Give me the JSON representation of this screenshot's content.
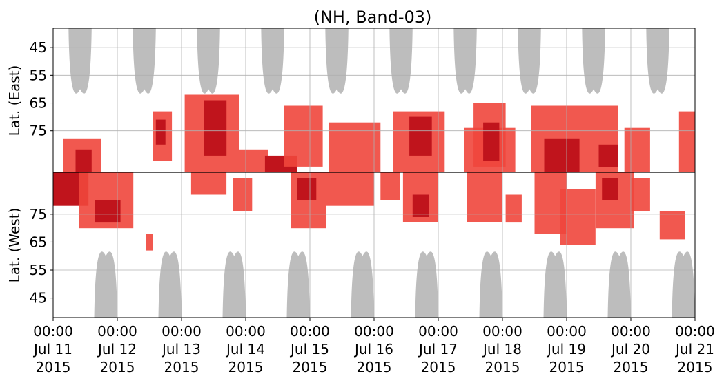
{
  "chart_data": {
    "type": "heatmap",
    "title": "(NH, Band-03)",
    "ylabel_top": "Lat. (East)",
    "ylabel_bottom": "Lat. (West)",
    "x_ticks": [
      {
        "time": "00:00",
        "date": "Jul 11",
        "year": "2015"
      },
      {
        "time": "00:00",
        "date": "Jul 12",
        "year": "2015"
      },
      {
        "time": "00:00",
        "date": "Jul 13",
        "year": "2015"
      },
      {
        "time": "00:00",
        "date": "Jul 14",
        "year": "2015"
      },
      {
        "time": "00:00",
        "date": "Jul 15",
        "year": "2015"
      },
      {
        "time": "00:00",
        "date": "Jul 16",
        "year": "2015"
      },
      {
        "time": "00:00",
        "date": "Jul 17",
        "year": "2015"
      },
      {
        "time": "00:00",
        "date": "Jul 18",
        "year": "2015"
      },
      {
        "time": "00:00",
        "date": "Jul 19",
        "year": "2015"
      },
      {
        "time": "00:00",
        "date": "Jul 20",
        "year": "2015"
      },
      {
        "time": "00:00",
        "date": "Jul 21",
        "year": "2015"
      }
    ],
    "xlim": [
      "2015-07-11T00:00",
      "2015-07-21T00:00"
    ],
    "y_ticks_east": [
      "45",
      "55",
      "65",
      "75"
    ],
    "y_ticks_west": [
      "75",
      "65",
      "55",
      "45"
    ],
    "ylim_east": [
      38,
      90
    ],
    "ylim_west": [
      90,
      38
    ],
    "grid": true,
    "colors": {
      "darkred": "#c0141c",
      "red": "#f0463c",
      "gray": "#bdbdbd"
    },
    "gray_lobes": [
      {
        "panel": "east",
        "day": 0.42,
        "half_width_days": 0.18,
        "lat_edge": 60
      },
      {
        "panel": "east",
        "day": 1.42,
        "half_width_days": 0.18,
        "lat_edge": 60
      },
      {
        "panel": "east",
        "day": 2.42,
        "half_width_days": 0.18,
        "lat_edge": 60
      },
      {
        "panel": "east",
        "day": 3.42,
        "half_width_days": 0.18,
        "lat_edge": 60
      },
      {
        "panel": "east",
        "day": 4.42,
        "half_width_days": 0.18,
        "lat_edge": 60
      },
      {
        "panel": "east",
        "day": 5.42,
        "half_width_days": 0.18,
        "lat_edge": 60
      },
      {
        "panel": "east",
        "day": 6.42,
        "half_width_days": 0.18,
        "lat_edge": 60
      },
      {
        "panel": "east",
        "day": 7.42,
        "half_width_days": 0.18,
        "lat_edge": 60
      },
      {
        "panel": "east",
        "day": 8.42,
        "half_width_days": 0.18,
        "lat_edge": 60
      },
      {
        "panel": "east",
        "day": 9.42,
        "half_width_days": 0.18,
        "lat_edge": 60
      },
      {
        "panel": "west",
        "day": 0.82,
        "half_width_days": 0.18,
        "lat_edge": 60
      },
      {
        "panel": "west",
        "day": 1.82,
        "half_width_days": 0.18,
        "lat_edge": 60
      },
      {
        "panel": "west",
        "day": 2.82,
        "half_width_days": 0.18,
        "lat_edge": 60
      },
      {
        "panel": "west",
        "day": 3.82,
        "half_width_days": 0.18,
        "lat_edge": 60
      },
      {
        "panel": "west",
        "day": 4.82,
        "half_width_days": 0.18,
        "lat_edge": 60
      },
      {
        "panel": "west",
        "day": 5.82,
        "half_width_days": 0.18,
        "lat_edge": 60
      },
      {
        "panel": "west",
        "day": 6.82,
        "half_width_days": 0.18,
        "lat_edge": 60
      },
      {
        "panel": "west",
        "day": 7.82,
        "half_width_days": 0.18,
        "lat_edge": 60
      },
      {
        "panel": "west",
        "day": 8.82,
        "half_width_days": 0.18,
        "lat_edge": 60
      },
      {
        "panel": "west",
        "day": 9.82,
        "half_width_days": 0.18,
        "lat_edge": 60
      }
    ],
    "red_regions": [
      {
        "panel": "east",
        "day_start": 0.15,
        "day_end": 0.75,
        "lat_low": 78,
        "lat_high": 90,
        "level": "red"
      },
      {
        "panel": "east",
        "day_start": 0.35,
        "day_end": 0.6,
        "lat_low": 82,
        "lat_high": 90,
        "level": "darkred"
      },
      {
        "panel": "east",
        "day_start": 1.55,
        "day_end": 1.85,
        "lat_low": 68,
        "lat_high": 86,
        "level": "red"
      },
      {
        "panel": "east",
        "day_start": 1.6,
        "day_end": 1.75,
        "lat_low": 71,
        "lat_high": 80,
        "level": "darkred"
      },
      {
        "panel": "east",
        "day_start": 2.05,
        "day_end": 2.9,
        "lat_low": 62,
        "lat_high": 90,
        "level": "red"
      },
      {
        "panel": "east",
        "day_start": 2.35,
        "day_end": 2.7,
        "lat_low": 64,
        "lat_high": 84,
        "level": "darkred"
      },
      {
        "panel": "east",
        "day_start": 2.9,
        "day_end": 3.35,
        "lat_low": 82,
        "lat_high": 90,
        "level": "red"
      },
      {
        "panel": "east",
        "day_start": 3.3,
        "day_end": 3.8,
        "lat_low": 84,
        "lat_high": 90,
        "level": "darkred"
      },
      {
        "panel": "east",
        "day_start": 3.6,
        "day_end": 4.2,
        "lat_low": 66,
        "lat_high": 88,
        "level": "red"
      },
      {
        "panel": "east",
        "day_start": 4.3,
        "day_end": 5.1,
        "lat_low": 72,
        "lat_high": 90,
        "level": "red"
      },
      {
        "panel": "east",
        "day_start": 5.3,
        "day_end": 6.1,
        "lat_low": 68,
        "lat_high": 90,
        "level": "red"
      },
      {
        "panel": "east",
        "day_start": 5.55,
        "day_end": 5.9,
        "lat_low": 70,
        "lat_high": 84,
        "level": "darkred"
      },
      {
        "panel": "east",
        "day_start": 6.4,
        "day_end": 7.2,
        "lat_low": 74,
        "lat_high": 90,
        "level": "red"
      },
      {
        "panel": "east",
        "day_start": 6.55,
        "day_end": 7.05,
        "lat_low": 65,
        "lat_high": 88,
        "level": "red"
      },
      {
        "panel": "east",
        "day_start": 6.7,
        "day_end": 6.95,
        "lat_low": 72,
        "lat_high": 86,
        "level": "darkred"
      },
      {
        "panel": "east",
        "day_start": 7.45,
        "day_end": 8.8,
        "lat_low": 66,
        "lat_high": 90,
        "level": "red"
      },
      {
        "panel": "east",
        "day_start": 7.65,
        "day_end": 8.2,
        "lat_low": 78,
        "lat_high": 90,
        "level": "darkred"
      },
      {
        "panel": "east",
        "day_start": 8.5,
        "day_end": 8.8,
        "lat_low": 80,
        "lat_high": 88,
        "level": "darkred"
      },
      {
        "panel": "east",
        "day_start": 8.9,
        "day_end": 9.3,
        "lat_low": 74,
        "lat_high": 90,
        "level": "red"
      },
      {
        "panel": "east",
        "day_start": 9.75,
        "day_end": 10.0,
        "lat_low": 68,
        "lat_high": 90,
        "level": "red"
      },
      {
        "panel": "west",
        "day_start": 0.0,
        "day_end": 0.55,
        "lat_low": 78,
        "lat_high": 90,
        "level": "darkred"
      },
      {
        "panel": "west",
        "day_start": 0.4,
        "day_end": 1.25,
        "lat_low": 70,
        "lat_high": 90,
        "level": "red"
      },
      {
        "panel": "west",
        "day_start": 0.65,
        "day_end": 1.05,
        "lat_low": 72,
        "lat_high": 80,
        "level": "darkred"
      },
      {
        "panel": "west",
        "day_start": 1.45,
        "day_end": 1.55,
        "lat_low": 62,
        "lat_high": 68,
        "level": "red"
      },
      {
        "panel": "west",
        "day_start": 2.15,
        "day_end": 2.7,
        "lat_low": 82,
        "lat_high": 90,
        "level": "red"
      },
      {
        "panel": "west",
        "day_start": 2.8,
        "day_end": 3.1,
        "lat_low": 76,
        "lat_high": 88,
        "level": "red"
      },
      {
        "panel": "west",
        "day_start": 3.7,
        "day_end": 4.25,
        "lat_low": 70,
        "lat_high": 90,
        "level": "red"
      },
      {
        "panel": "west",
        "day_start": 3.8,
        "day_end": 4.1,
        "lat_low": 80,
        "lat_high": 88,
        "level": "darkred"
      },
      {
        "panel": "west",
        "day_start": 4.25,
        "day_end": 5.0,
        "lat_low": 78,
        "lat_high": 90,
        "level": "red"
      },
      {
        "panel": "west",
        "day_start": 5.1,
        "day_end": 5.4,
        "lat_low": 80,
        "lat_high": 90,
        "level": "red"
      },
      {
        "panel": "west",
        "day_start": 5.45,
        "day_end": 6.0,
        "lat_low": 72,
        "lat_high": 90,
        "level": "red"
      },
      {
        "panel": "west",
        "day_start": 5.6,
        "day_end": 5.85,
        "lat_low": 74,
        "lat_high": 82,
        "level": "darkred"
      },
      {
        "panel": "west",
        "day_start": 6.45,
        "day_end": 7.0,
        "lat_low": 72,
        "lat_high": 90,
        "level": "red"
      },
      {
        "panel": "west",
        "day_start": 7.05,
        "day_end": 7.3,
        "lat_low": 72,
        "lat_high": 82,
        "level": "red"
      },
      {
        "panel": "west",
        "day_start": 7.5,
        "day_end": 8.0,
        "lat_low": 68,
        "lat_high": 90,
        "level": "red"
      },
      {
        "panel": "west",
        "day_start": 7.9,
        "day_end": 8.45,
        "lat_low": 64,
        "lat_high": 84,
        "level": "red"
      },
      {
        "panel": "west",
        "day_start": 8.45,
        "day_end": 9.05,
        "lat_low": 70,
        "lat_high": 90,
        "level": "red"
      },
      {
        "panel": "west",
        "day_start": 8.55,
        "day_end": 8.8,
        "lat_low": 80,
        "lat_high": 88,
        "level": "darkred"
      },
      {
        "panel": "west",
        "day_start": 9.0,
        "day_end": 9.3,
        "lat_low": 76,
        "lat_high": 88,
        "level": "red"
      },
      {
        "panel": "west",
        "day_start": 9.45,
        "day_end": 9.85,
        "lat_low": 66,
        "lat_high": 76,
        "level": "red"
      }
    ]
  }
}
